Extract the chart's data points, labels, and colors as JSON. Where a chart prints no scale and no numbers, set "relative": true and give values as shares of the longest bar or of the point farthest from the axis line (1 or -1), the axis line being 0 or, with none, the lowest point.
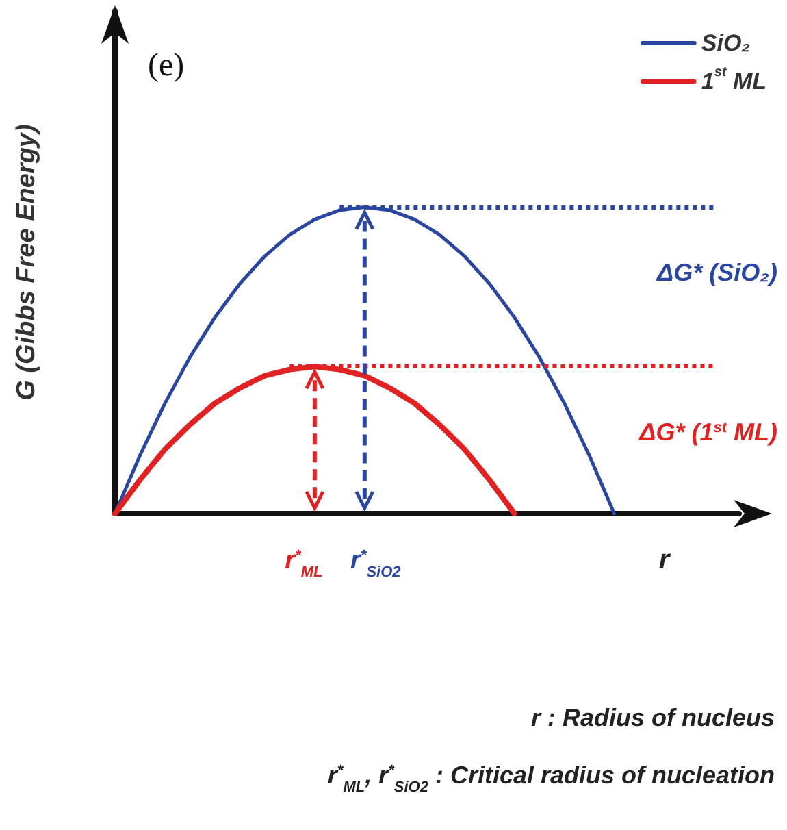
{
  "chart_data": {
    "type": "line",
    "relative": true,
    "ylabel": "G (Gibbs Free Energy)",
    "xlabel": "r",
    "categories": [
      null,
      null,
      null,
      null,
      null,
      null,
      null,
      null,
      null,
      null,
      null,
      null,
      null,
      null,
      null,
      null,
      null,
      null,
      null,
      null,
      null,
      null,
      null,
      null,
      null,
      null
    ],
    "series": [
      {
        "name": "SiO₂",
        "color": "#2b46a0",
        "values": [
          0,
          0.19,
          0.36,
          0.51,
          0.64,
          0.75,
          0.84,
          0.91,
          0.96,
          0.99,
          1,
          0.99,
          0.96,
          0.91,
          0.84,
          0.75,
          0.64,
          0.51,
          0.36,
          0.19,
          0,
          null,
          null,
          null,
          null,
          null
        ]
      },
      {
        "name": "1$^{st}$ ML",
        "color": "#e02222",
        "values": [
          0,
          0.11,
          0.21,
          0.29,
          0.36,
          0.41,
          0.45,
          0.47,
          0.48,
          0.47,
          0.45,
          0.41,
          0.36,
          0.29,
          0.21,
          0.11,
          0,
          null,
          null,
          null,
          null,
          null,
          null,
          null,
          null,
          null
        ]
      }
    ],
    "ref_lines": [
      {
        "axis": "y",
        "value": 1,
        "label": "ΔG* (SiO₂)",
        "color": "#2b46a0",
        "line_style": "dotted"
      },
      {
        "axis": "y",
        "value": 0.48,
        "label": "ΔG* (1$^{st}$ ML)",
        "color": "#e02222",
        "line_style": "dotted"
      }
    ],
    "annotations": [
      "(e)",
      "r$^{*}$$_{ML}$",
      "r$^{*}$$_{SiO2}$",
      "r : Radius of nucleus",
      "r$^{*}$$_{ML}$, r$^{*}$$_{SiO2}$ : Critical radius of nucleation"
    ],
    "legend": "top right",
    "marker": "none",
    "line_style": "solid",
    "grid": false
  }
}
